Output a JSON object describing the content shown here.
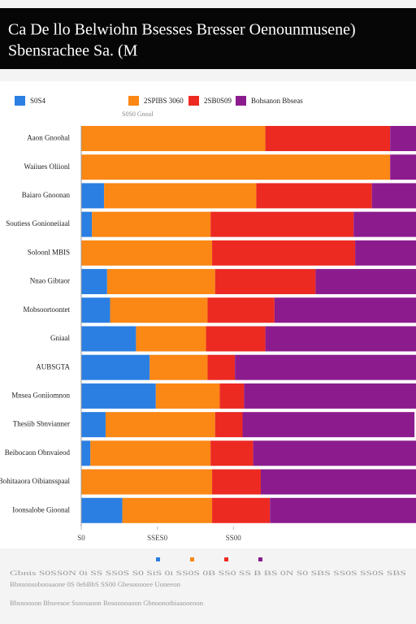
{
  "chart_data": {
    "type": "stacked_barh",
    "title": "Ca De llo Belwiohn Bsesses Bresser Oenounmusene)",
    "subtitle": "Sbensrachee Sa. (M",
    "axis_note": "S0S0 Gnoal",
    "categories": [
      "Aaon Gnoohal",
      "Waiiues Oliionl",
      "Baiaro Gnoonan",
      "Soutiess Gonioneiiaal",
      "Soloonl MBIS",
      "Nnao Gibtaor",
      "Mobsoortoontet",
      "Gniaal",
      "AUBSGTA",
      "Mnsea Goniiomnon",
      "Thesiib Sbnvianner",
      "Beibocaon Obnvaieod",
      "Bohitaaora Oibiansspaal",
      "Ioonsalobe Gioonal"
    ],
    "series": [
      {
        "name": "S0S4",
        "color": "#2b7fe3",
        "values": [
          0,
          0,
          7.5,
          3.5,
          0,
          8.5,
          9.5,
          18,
          22.5,
          24.5,
          8,
          3,
          0,
          13.5
        ]
      },
      {
        "name": "2SPIBS 3060",
        "color": "#fb8714",
        "values": [
          60.5,
          101.5,
          50,
          39,
          43,
          35.5,
          32,
          23,
          19,
          21,
          36,
          39.5,
          43,
          29.5
        ]
      },
      {
        "name": "2SB0S09",
        "color": "#ec2a22",
        "values": [
          41,
          0,
          38,
          47,
          47,
          33,
          22,
          19.5,
          9,
          8,
          9,
          14,
          16,
          19
        ]
      },
      {
        "name": "Bohsanon Bbseas",
        "color": "#8c1c8e",
        "values": [
          8.5,
          8.5,
          14.5,
          20.5,
          20,
          33,
          46.5,
          49.5,
          59.5,
          56.5,
          56.5,
          53.5,
          51,
          48
        ]
      }
    ],
    "xlim": [
      0,
      110
    ],
    "xticks": [
      {
        "value": 0,
        "label": "S0"
      },
      {
        "value": 25,
        "label": "SSES0"
      },
      {
        "value": 50,
        "label": "SS00"
      }
    ],
    "grid": true,
    "legend": "top",
    "footnotes": [
      "Gbnis S0SS0N 0i SS SS0S S0 SiS 0i SS0S 0B SS0 SS B BS 0N S0 SBS SS0S SS0S SBS",
      "Bbnsonsobooaaone 0S 0ebBbS SS00 Gbesooooee Uoneeon",
      "Bbsnoooon Bbseeaoe Ssoosaoon Bosooooaoon Gbnoonotbiaaooeoon"
    ]
  }
}
